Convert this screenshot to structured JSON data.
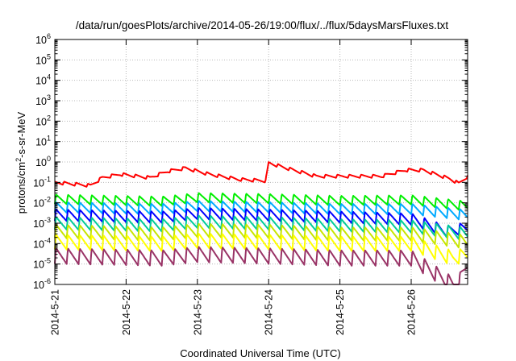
{
  "chart_data": {
    "type": "line",
    "title": "/data/run/goesPlots/archive/2014-05-26/19:00/flux/../flux/5daysMarsFluxes.txt",
    "xlabel": "Coordinated Universal Time (UTC)",
    "ylabel": {
      "pre": "protons/cm",
      "sup": "2",
      "post": "-s-sr-MeV"
    },
    "y_scale": "log",
    "ylim": [
      1e-06,
      1000000.0
    ],
    "y_ticks": [
      {
        "value": 1e-06,
        "base": "10",
        "exp": "-6"
      },
      {
        "value": 1e-05,
        "base": "10",
        "exp": "-5"
      },
      {
        "value": 0.0001,
        "base": "10",
        "exp": "-4"
      },
      {
        "value": 0.001,
        "base": "10",
        "exp": "-3"
      },
      {
        "value": 0.01,
        "base": "10",
        "exp": "-2"
      },
      {
        "value": 0.1,
        "base": "10",
        "exp": "-1"
      },
      {
        "value": 1,
        "base": "10",
        "exp": "0"
      },
      {
        "value": 10,
        "base": "10",
        "exp": "1"
      },
      {
        "value": 100,
        "base": "10",
        "exp": "2"
      },
      {
        "value": 1000,
        "base": "10",
        "exp": "3"
      },
      {
        "value": 10000,
        "base": "10",
        "exp": "4"
      },
      {
        "value": 100000,
        "base": "10",
        "exp": "5"
      },
      {
        "value": 1000000,
        "base": "10",
        "exp": "6"
      }
    ],
    "xlim": [
      "2014-05-21T00:00",
      "2014-05-26T19:00"
    ],
    "x_ticks": [
      "2014-5-21",
      "2014-5-22",
      "2014-5-23",
      "2014-5-24",
      "2014-5-25",
      "2014-5-26"
    ],
    "grid": true,
    "legend": "none",
    "sawtooth_period_hours": 4,
    "series": [
      {
        "color": "#ff0000",
        "points": [
          [
            "2014-05-21T00:00",
            0.1
          ],
          [
            "2014-05-21T12:00",
            0.07
          ],
          [
            "2014-05-21T16:00",
            0.17
          ],
          [
            "2014-05-21T22:00",
            0.25
          ],
          [
            "2014-05-22T08:00",
            0.17
          ],
          [
            "2014-05-22T14:00",
            0.35
          ],
          [
            "2014-05-22T20:00",
            0.5
          ],
          [
            "2014-05-23T04:00",
            0.25
          ],
          [
            "2014-05-23T14:00",
            0.14
          ],
          [
            "2014-05-23T23:00",
            0.12
          ],
          [
            "2014-05-24T00:00",
            0.9
          ],
          [
            "2014-05-24T06:00",
            0.5
          ],
          [
            "2014-05-24T16:00",
            0.2
          ],
          [
            "2014-05-25T04:00",
            0.2
          ],
          [
            "2014-05-25T14:00",
            0.2
          ],
          [
            "2014-05-25T22:00",
            0.4
          ],
          [
            "2014-05-26T04:00",
            0.4
          ],
          [
            "2014-05-26T13:00",
            0.15
          ],
          [
            "2014-05-26T16:00",
            0.09
          ],
          [
            "2014-05-26T19:00",
            0.2
          ]
        ]
      },
      {
        "color": "#00ee00",
        "points": [
          [
            "2014-05-21T00:00",
            0.015
          ],
          [
            "2014-05-22T12:00",
            0.012
          ],
          [
            "2014-05-23T00:00",
            0.018
          ],
          [
            "2014-05-24T00:00",
            0.016
          ],
          [
            "2014-05-25T00:00",
            0.013
          ],
          [
            "2014-05-26T00:00",
            0.014
          ],
          [
            "2014-05-26T19:00",
            0.007
          ]
        ]
      },
      {
        "color": "#00aaff",
        "points": [
          [
            "2014-05-21T00:00",
            0.006
          ],
          [
            "2014-05-22T12:00",
            0.005
          ],
          [
            "2014-05-23T00:00",
            0.007
          ],
          [
            "2014-05-24T00:00",
            0.006
          ],
          [
            "2014-05-25T00:00",
            0.005
          ],
          [
            "2014-05-26T00:00",
            0.005
          ],
          [
            "2014-05-26T19:00",
            0.0025
          ]
        ]
      },
      {
        "color": "#0000ff",
        "points": [
          [
            "2014-05-21T00:00",
            0.0025
          ],
          [
            "2014-05-22T12:00",
            0.002
          ],
          [
            "2014-05-23T00:00",
            0.003
          ],
          [
            "2014-05-24T00:00",
            0.0025
          ],
          [
            "2014-05-25T00:00",
            0.002
          ],
          [
            "2014-05-26T00:00",
            0.0016
          ],
          [
            "2014-05-26T12:00",
            0.0004
          ],
          [
            "2014-05-26T19:00",
            0.0006
          ]
        ]
      },
      {
        "color": "#00cc99",
        "points": [
          [
            "2014-05-21T00:00",
            0.001
          ],
          [
            "2014-05-22T12:00",
            0.0008
          ],
          [
            "2014-05-23T00:00",
            0.0012
          ],
          [
            "2014-05-24T00:00",
            0.001
          ],
          [
            "2014-05-25T00:00",
            0.0008
          ],
          [
            "2014-05-26T00:00",
            0.0007
          ],
          [
            "2014-05-26T19:00",
            0.0003
          ]
        ]
      },
      {
        "color": "#c8e600",
        "points": [
          [
            "2014-05-21T00:00",
            0.0004
          ],
          [
            "2014-05-22T12:00",
            0.0003
          ],
          [
            "2014-05-23T00:00",
            0.00045
          ],
          [
            "2014-05-24T00:00",
            0.0004
          ],
          [
            "2014-05-25T00:00",
            0.0003
          ],
          [
            "2014-05-26T00:00",
            0.0003
          ],
          [
            "2014-05-26T19:00",
            0.00012
          ]
        ]
      },
      {
        "color": "#ffff00",
        "points": [
          [
            "2014-05-21T00:00",
            0.00012
          ],
          [
            "2014-05-22T12:00",
            0.0001
          ],
          [
            "2014-05-23T00:00",
            0.00014
          ],
          [
            "2014-05-24T00:00",
            0.00012
          ],
          [
            "2014-05-25T00:00",
            0.0001
          ],
          [
            "2014-05-26T00:00",
            0.0001
          ],
          [
            "2014-05-26T14:00",
            2e-05
          ],
          [
            "2014-05-26T19:00",
            3e-05
          ]
        ]
      },
      {
        "color": "#993366",
        "points": [
          [
            "2014-05-21T00:00",
            2.5e-05
          ],
          [
            "2014-05-22T12:00",
            2e-05
          ],
          [
            "2014-05-23T00:00",
            3e-05
          ],
          [
            "2014-05-24T00:00",
            2.5e-05
          ],
          [
            "2014-05-25T00:00",
            2e-05
          ],
          [
            "2014-05-26T00:00",
            2e-05
          ],
          [
            "2014-05-26T14:00",
            1e-06
          ],
          [
            "2014-05-26T16:00",
            1.2e-06
          ],
          [
            "2014-05-26T19:00",
            1e-05
          ]
        ]
      }
    ]
  }
}
